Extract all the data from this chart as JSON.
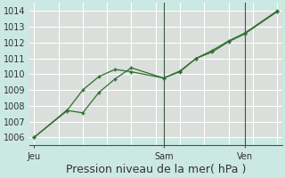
{
  "xlabel": "Pression niveau de la mer( hPa )",
  "background_color": "#cce8e2",
  "plot_bg_color": "#cce8e2",
  "cell_pink_color": "#e8d8d8",
  "grid_color": "#ffffff",
  "line_color": "#2d6e2d",
  "vline_color": "#3a5a3a",
  "x_ticks_labels": [
    "Jeu",
    "Sam",
    "Ven"
  ],
  "x_ticks_positions": [
    0.0,
    0.533,
    0.867
  ],
  "ylim": [
    1005.5,
    1014.5
  ],
  "yticks": [
    1006,
    1007,
    1008,
    1009,
    1010,
    1011,
    1012,
    1013,
    1014
  ],
  "line1_x": [
    0.0,
    0.133,
    0.2,
    0.267,
    0.333,
    0.4,
    0.533,
    0.6,
    0.667,
    0.733,
    0.8,
    0.867,
    1.0
  ],
  "line1_y": [
    1006.0,
    1007.65,
    1009.0,
    1009.85,
    1010.3,
    1010.15,
    1009.75,
    1010.15,
    1011.0,
    1011.5,
    1012.1,
    1012.6,
    1014.0
  ],
  "line2_x": [
    0.0,
    0.133,
    0.2,
    0.267,
    0.333,
    0.4,
    0.533,
    0.6,
    0.667,
    0.733,
    0.8,
    0.867,
    1.0
  ],
  "line2_y": [
    1006.0,
    1007.7,
    1007.55,
    1008.85,
    1009.7,
    1010.4,
    1009.75,
    1010.2,
    1011.0,
    1011.4,
    1012.05,
    1012.55,
    1013.95
  ],
  "vline_positions": [
    0.533,
    0.867
  ],
  "xlabel_fontsize": 9,
  "ytick_fontsize": 7,
  "xtick_fontsize": 7
}
